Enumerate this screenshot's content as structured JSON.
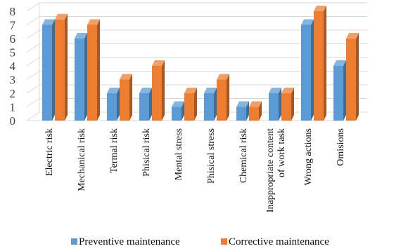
{
  "chart_data": {
    "type": "bar",
    "categories": [
      [
        "Electric risk"
      ],
      [
        "Mechanical risk"
      ],
      [
        "Termal risk"
      ],
      [
        "Phisical risk"
      ],
      [
        "Mental stress"
      ],
      [
        "Phisical stress"
      ],
      [
        "Chemical risk"
      ],
      [
        "Inappropriate content",
        "of work task"
      ],
      [
        "Wrong actions"
      ],
      [
        "Omisions"
      ]
    ],
    "series": [
      {
        "name": "Preventive maintenance",
        "color": "#5b9bd5",
        "values": [
          7,
          6,
          2,
          2,
          1,
          2,
          1,
          2,
          7,
          4
        ]
      },
      {
        "name": "Corrective maintenance",
        "color": "#ed7d31",
        "values": [
          7.4,
          7,
          3,
          4,
          2,
          3,
          1,
          2,
          8,
          6
        ]
      }
    ],
    "ylim": [
      0,
      8
    ],
    "yticks": [
      0,
      1,
      2,
      3,
      4,
      5,
      6,
      7,
      8
    ],
    "grid": true,
    "legend_position": "bottom"
  }
}
